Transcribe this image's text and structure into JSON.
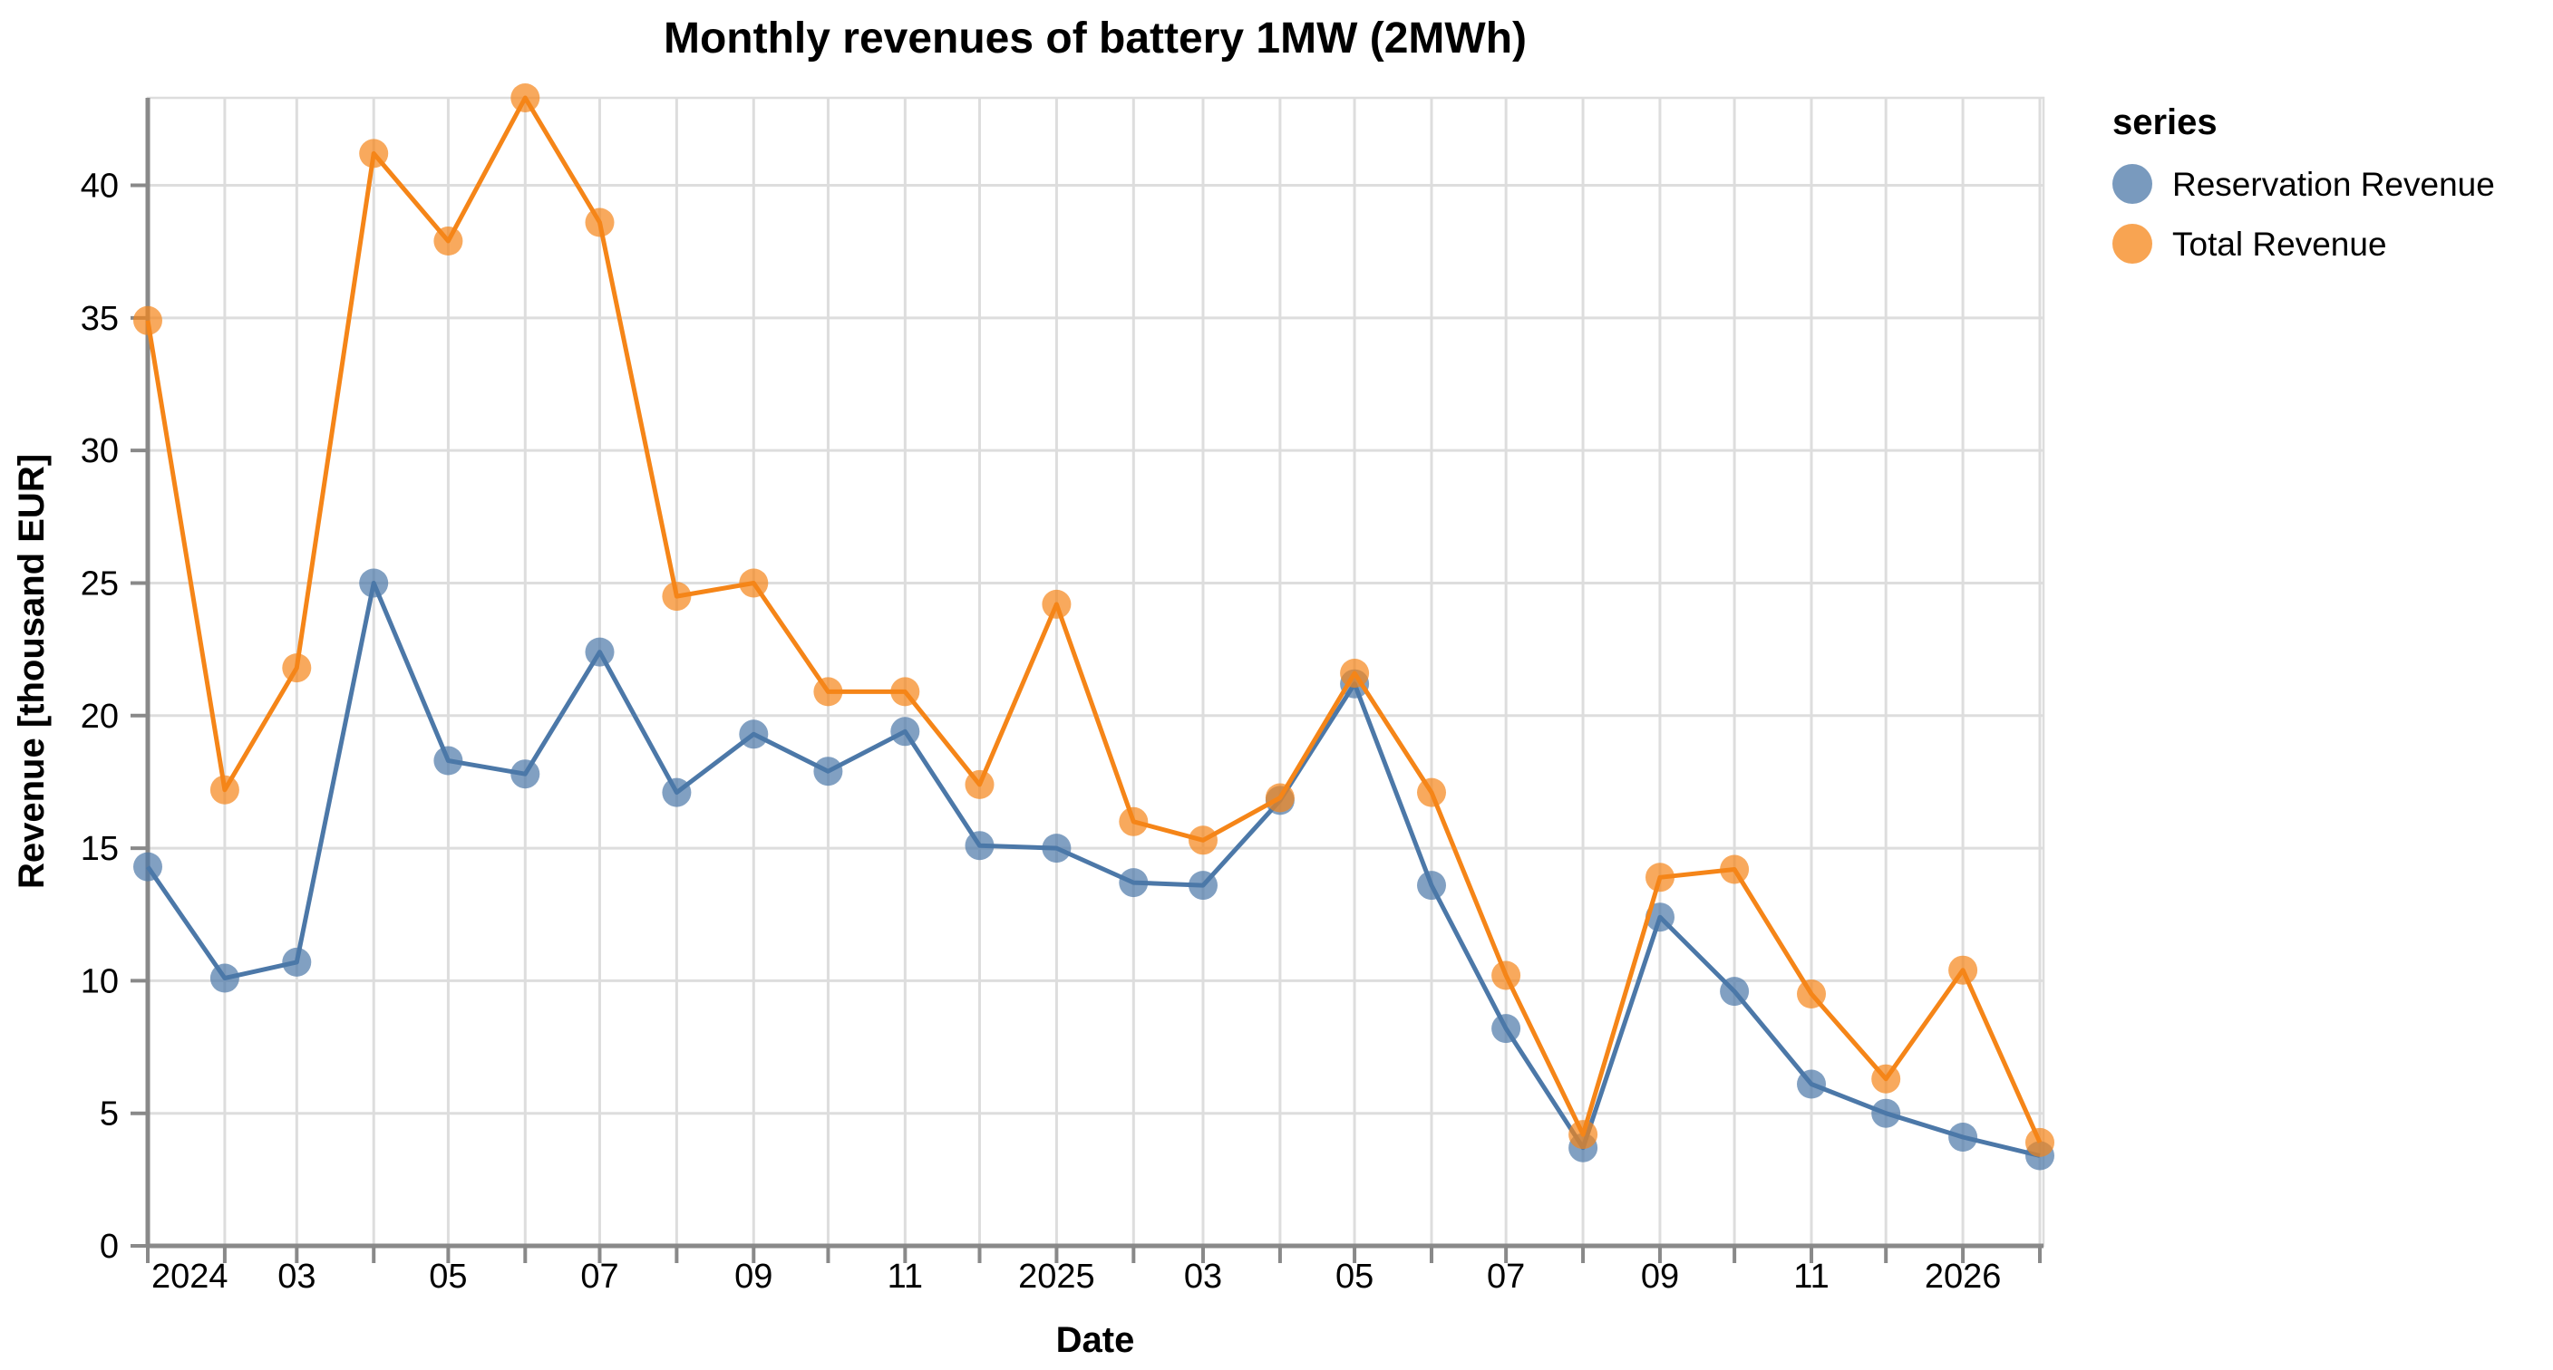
{
  "title": "Monthly revenues of battery 1MW (2MWh)",
  "x_axis": {
    "title": "Date",
    "tick_labels": [
      {
        "date": "2024-01",
        "label": "2024",
        "flush": true
      },
      {
        "date": "2024-03",
        "label": "03"
      },
      {
        "date": "2024-05",
        "label": "05"
      },
      {
        "date": "2024-07",
        "label": "07"
      },
      {
        "date": "2024-09",
        "label": "09"
      },
      {
        "date": "2024-11",
        "label": "11"
      },
      {
        "date": "2025-01",
        "label": "2025"
      },
      {
        "date": "2025-03",
        "label": "03"
      },
      {
        "date": "2025-05",
        "label": "05"
      },
      {
        "date": "2025-07",
        "label": "07"
      },
      {
        "date": "2025-09",
        "label": "09"
      },
      {
        "date": "2025-11",
        "label": "11"
      },
      {
        "date": "2026-01",
        "label": "2026"
      }
    ]
  },
  "y_axis": {
    "title": "Revenue [thousand EUR]",
    "ticks": [
      0,
      5,
      10,
      15,
      20,
      25,
      30,
      35,
      40
    ]
  },
  "legend": {
    "title": "series",
    "entries": [
      {
        "label": "Reservation Revenue",
        "color": "#4c78a8"
      },
      {
        "label": "Total Revenue",
        "color": "#f58518"
      }
    ]
  },
  "colors": {
    "grid": "#dddddd",
    "axis": "#898989",
    "text": "#000000",
    "blue": "#4c78a8",
    "orange": "#f58518"
  },
  "chart_data": {
    "type": "line",
    "title": "Monthly revenues of battery 1MW (2MWh)",
    "xlabel": "Date",
    "ylabel": "Revenue [thousand EUR]",
    "ylim": [
      0,
      43.3
    ],
    "grid": true,
    "legend_position": "right",
    "point_markers": true,
    "x": [
      "2024-01",
      "2024-02",
      "2024-03",
      "2024-04",
      "2024-05",
      "2024-06",
      "2024-07",
      "2024-08",
      "2024-09",
      "2024-10",
      "2024-11",
      "2024-12",
      "2025-01",
      "2025-02",
      "2025-03",
      "2025-04",
      "2025-05",
      "2025-06",
      "2025-07",
      "2025-08",
      "2025-09",
      "2025-10",
      "2025-11",
      "2025-12",
      "2026-01",
      "2026-02"
    ],
    "series": [
      {
        "name": "Reservation Revenue",
        "color": "#4c78a8",
        "values": [
          14.3,
          10.1,
          10.7,
          25.0,
          18.3,
          17.8,
          22.4,
          17.1,
          19.3,
          17.9,
          19.4,
          15.1,
          15.0,
          13.7,
          13.6,
          16.8,
          21.2,
          13.6,
          8.2,
          3.7,
          12.4,
          9.6,
          6.1,
          5.0,
          4.1,
          3.4
        ]
      },
      {
        "name": "Total Revenue",
        "color": "#f58518",
        "values": [
          34.9,
          17.2,
          21.8,
          41.2,
          37.9,
          43.3,
          38.6,
          24.5,
          25.0,
          20.9,
          20.9,
          17.4,
          24.2,
          16.0,
          15.3,
          16.9,
          21.6,
          17.1,
          10.2,
          4.2,
          13.9,
          14.2,
          9.5,
          6.3,
          10.4,
          3.9
        ]
      }
    ]
  }
}
